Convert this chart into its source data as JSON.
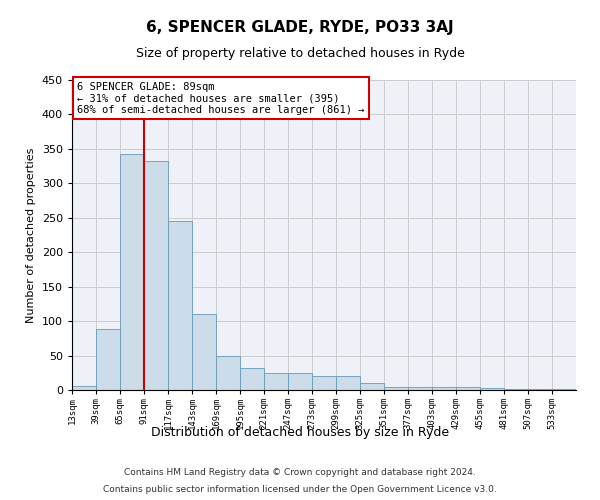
{
  "title": "6, SPENCER GLADE, RYDE, PO33 3AJ",
  "subtitle": "Size of property relative to detached houses in Ryde",
  "xlabel": "Distribution of detached houses by size in Ryde",
  "ylabel": "Number of detached properties",
  "bar_color": "#ccdce8",
  "bar_edge_color": "#6699bb",
  "grid_color": "#cccccc",
  "background_color": "#eef2f8",
  "vline_x": 91,
  "vline_color": "#cc0000",
  "bin_starts": [
    13,
    39,
    65,
    91,
    117,
    143,
    169,
    195,
    221,
    247,
    273,
    299,
    325,
    351,
    377,
    403,
    429,
    455,
    481,
    507,
    533
  ],
  "bin_width": 26,
  "bar_values": [
    6,
    88,
    342,
    333,
    245,
    110,
    50,
    32,
    25,
    25,
    20,
    20,
    10,
    5,
    5,
    4,
    4,
    3,
    2,
    2,
    2
  ],
  "ylim": [
    0,
    450
  ],
  "yticks": [
    0,
    50,
    100,
    150,
    200,
    250,
    300,
    350,
    400,
    450
  ],
  "annotation_text_line1": "6 SPENCER GLADE: 89sqm",
  "annotation_text_line2": "← 31% of detached houses are smaller (395)",
  "annotation_text_line3": "68% of semi-detached houses are larger (861) →",
  "footer_line1": "Contains HM Land Registry data © Crown copyright and database right 2024.",
  "footer_line2": "Contains public sector information licensed under the Open Government Licence v3.0."
}
